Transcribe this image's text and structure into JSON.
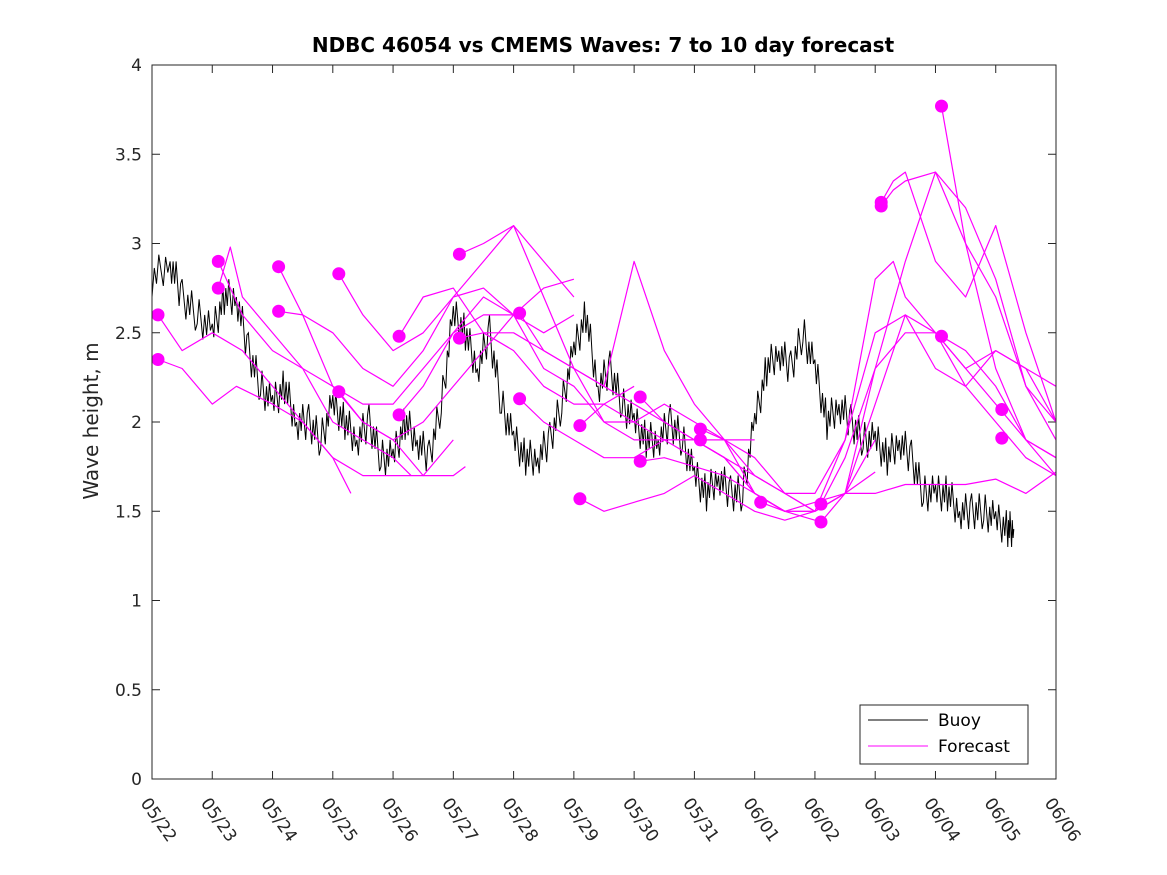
{
  "chart_data": {
    "type": "line",
    "title": "NDBC 46054 vs CMEMS Waves: 7 to 10 day forecast",
    "xlabel": "",
    "ylabel": "Wave height, m",
    "x_tick_labels": [
      "05/22",
      "05/23",
      "05/24",
      "05/25",
      "05/26",
      "05/27",
      "05/28",
      "05/29",
      "05/30",
      "05/31",
      "06/01",
      "06/02",
      "06/03",
      "06/04",
      "06/05",
      "06/06"
    ],
    "y_ticks": [
      0,
      0.5,
      1,
      1.5,
      2,
      2.5,
      3,
      3.5,
      4
    ],
    "xlim": [
      0,
      15
    ],
    "ylim": [
      0,
      4
    ],
    "x_unit": "days since 05/22",
    "grid": false,
    "legend_position": "bottom-right",
    "colors": {
      "buoy": "#000000",
      "forecast": "#ff00ff"
    },
    "legend": [
      {
        "key": "buoy",
        "label": "Buoy"
      },
      {
        "key": "forecast",
        "label": "Forecast"
      }
    ],
    "buoy": {
      "name": "Buoy",
      "x": [
        0,
        0.3,
        0.5,
        0.75,
        1,
        1.2,
        1.4,
        1.6,
        1.8,
        2,
        2.2,
        2.4,
        2.6,
        2.8,
        3,
        3.2,
        3.4,
        3.6,
        3.8,
        4,
        4.2,
        4.4,
        4.6,
        4.8,
        5,
        5.2,
        5.4,
        5.6,
        5.8,
        6,
        6.2,
        6.4,
        6.6,
        6.8,
        7,
        7.2,
        7.4,
        7.6,
        7.8,
        8,
        8.2,
        8.4,
        8.6,
        8.8,
        9,
        9.2,
        9.4,
        9.6,
        9.8,
        10,
        10.2,
        10.4,
        10.6,
        10.8,
        11,
        11.2,
        11.4,
        11.6,
        11.8,
        12,
        12.2,
        12.4,
        12.6,
        12.8,
        13,
        13.2,
        13.4,
        13.6,
        13.8,
        14,
        14.2,
        14.3
      ],
      "y": [
        2.8,
        2.9,
        2.7,
        2.6,
        2.5,
        2.7,
        2.7,
        2.4,
        2.2,
        2.1,
        2.2,
        2.0,
        2.0,
        1.9,
        2.1,
        2.0,
        1.9,
        2.0,
        1.8,
        1.8,
        2.0,
        1.9,
        1.8,
        2.1,
        2.6,
        2.5,
        2.3,
        2.5,
        2.1,
        1.9,
        1.8,
        1.8,
        1.9,
        2.1,
        2.4,
        2.6,
        2.2,
        2.3,
        2.1,
        2.0,
        1.9,
        1.9,
        2.0,
        1.9,
        1.7,
        1.6,
        1.7,
        1.6,
        1.6,
        2.0,
        2.3,
        2.4,
        2.3,
        2.5,
        2.3,
        2.0,
        2.1,
        2.0,
        1.9,
        1.9,
        1.8,
        1.9,
        1.8,
        1.6,
        1.6,
        1.6,
        1.5,
        1.5,
        1.5,
        1.45,
        1.4,
        1.4
      ]
    },
    "forecast_series": [
      {
        "x": [
          0.1,
          0.5,
          1,
          1.5,
          2,
          2.5,
          3,
          3.3
        ],
        "y": [
          2.6,
          2.4,
          2.5,
          2.4,
          2.2,
          2.0,
          1.8,
          1.6
        ]
      },
      {
        "x": [
          0.1,
          0.5,
          1,
          1.4,
          2,
          2.5,
          3,
          3.5,
          4,
          4.5,
          5,
          5.2
        ],
        "y": [
          2.35,
          2.3,
          2.1,
          2.2,
          2.1,
          2.0,
          1.8,
          1.7,
          1.7,
          1.7,
          1.7,
          1.75
        ]
      },
      {
        "x": [
          1.1,
          1.5,
          2,
          2.5,
          3,
          3.5,
          4,
          4.3
        ],
        "y": [
          2.9,
          2.6,
          2.4,
          2.3,
          2.0,
          1.9,
          1.8,
          1.7
        ]
      },
      {
        "x": [
          1.1,
          1.3,
          1.5,
          2,
          2.5,
          3,
          3.5,
          4,
          4.5,
          5
        ],
        "y": [
          2.75,
          2.98,
          2.7,
          2.5,
          2.3,
          2.2,
          2.0,
          1.9,
          1.7,
          1.9
        ]
      },
      {
        "x": [
          2.1,
          2.5,
          3,
          3.5,
          4,
          4.5,
          5,
          5.5,
          6
        ],
        "y": [
          2.87,
          2.6,
          2.2,
          2.1,
          2.1,
          2.3,
          2.5,
          2.7,
          2.6
        ]
      },
      {
        "x": [
          2.1,
          2.5,
          3,
          3.5,
          4,
          4.5,
          5,
          5.5,
          6,
          6.5,
          7
        ],
        "y": [
          2.62,
          2.6,
          2.5,
          2.3,
          2.2,
          2.4,
          2.7,
          2.75,
          2.6,
          2.75,
          2.8
        ]
      },
      {
        "x": [
          3.1,
          3.5,
          4,
          4.5,
          5,
          5.5,
          6,
          6.5,
          7
        ],
        "y": [
          2.83,
          2.6,
          2.4,
          2.5,
          2.7,
          2.9,
          3.1,
          2.9,
          2.7
        ]
      },
      {
        "x": [
          3.1,
          3.5,
          4,
          4.5,
          5,
          5.5,
          6,
          6.5,
          7
        ],
        "y": [
          2.17,
          2.0,
          1.9,
          2.0,
          2.2,
          2.4,
          2.6,
          2.5,
          2.6
        ]
      },
      {
        "x": [
          4.1,
          4.5,
          5,
          5.5,
          6,
          6.5,
          7,
          7.5,
          8
        ],
        "y": [
          2.48,
          2.7,
          2.75,
          2.5,
          2.4,
          2.2,
          2.1,
          2.1,
          2.2
        ]
      },
      {
        "x": [
          4.1,
          4.5,
          5,
          5.5,
          6,
          6.5,
          7,
          7.5,
          8,
          8.5,
          9
        ],
        "y": [
          2.04,
          2.2,
          2.5,
          2.6,
          2.6,
          2.3,
          2.2,
          2.0,
          1.9,
          1.9,
          1.8
        ]
      },
      {
        "x": [
          5.1,
          5.5,
          6,
          6.5,
          7,
          7.5,
          8,
          8.5,
          9,
          9.5,
          10
        ],
        "y": [
          2.94,
          3.0,
          3.1,
          2.7,
          2.3,
          2.0,
          2.0,
          2.1,
          2.0,
          1.9,
          1.9
        ]
      },
      {
        "x": [
          5.1,
          5.5,
          6,
          6.5,
          7,
          7.5,
          8,
          8.5,
          9
        ],
        "y": [
          2.47,
          2.5,
          2.5,
          2.4,
          2.3,
          2.2,
          2.1,
          2.0,
          1.9
        ]
      },
      {
        "x": [
          6.1,
          6.5,
          7,
          7.5,
          8,
          8.5,
          9,
          9.5,
          10,
          10.5
        ],
        "y": [
          2.61,
          2.4,
          2.3,
          2.2,
          2.9,
          2.4,
          2.1,
          1.9,
          1.6,
          1.5
        ]
      },
      {
        "x": [
          6.1,
          6.5,
          7,
          7.5,
          8,
          8.5,
          9,
          9.5,
          10,
          10.5,
          11
        ],
        "y": [
          2.13,
          2.0,
          1.9,
          1.8,
          1.8,
          1.9,
          1.9,
          1.8,
          1.7,
          1.6,
          1.5
        ]
      },
      {
        "x": [
          7.1,
          7.5,
          8,
          8.5,
          9,
          9.5,
          10,
          10.5,
          11
        ],
        "y": [
          1.98,
          2.1,
          2.0,
          1.9,
          1.9,
          1.8,
          1.6,
          1.5,
          1.45
        ]
      },
      {
        "x": [
          7.1,
          7.5,
          8,
          8.5,
          9,
          9.5,
          10,
          10.5,
          11,
          11.5,
          12
        ],
        "y": [
          1.57,
          1.5,
          1.55,
          1.6,
          1.7,
          1.6,
          1.5,
          1.45,
          1.5,
          1.6,
          1.72
        ]
      },
      {
        "x": [
          8.1,
          8.5,
          9,
          9.5,
          10,
          10.5,
          11,
          11.5,
          12
        ],
        "y": [
          2.14,
          2.0,
          1.9,
          1.8,
          1.6,
          1.5,
          1.5,
          1.6,
          1.9
        ]
      },
      {
        "x": [
          8.1,
          8.5,
          9,
          9.5,
          10,
          10.5,
          11,
          11.5,
          12,
          12.5,
          13,
          13.5,
          14,
          14.5,
          15
        ],
        "y": [
          1.78,
          1.8,
          1.75,
          1.7,
          1.6,
          1.5,
          1.55,
          1.6,
          1.6,
          1.65,
          1.65,
          1.65,
          1.68,
          1.6,
          1.72
        ]
      },
      {
        "x": [
          9.1,
          9.5,
          10,
          10.5,
          11,
          11.5,
          12,
          12.5,
          13,
          13.5,
          14,
          14.5,
          15
        ],
        "y": [
          1.96,
          1.9,
          1.7,
          1.6,
          1.6,
          1.9,
          2.5,
          2.6,
          2.3,
          2.2,
          2.4,
          2.3,
          2.2
        ]
      },
      {
        "x": [
          9.1,
          9.5,
          10,
          10.5,
          11,
          11.5,
          12,
          12.5,
          13,
          13.5,
          14,
          14.5,
          15
        ],
        "y": [
          1.9,
          1.9,
          1.8,
          1.6,
          1.5,
          1.6,
          2.3,
          2.5,
          2.5,
          2.3,
          2.4,
          2.3,
          2.0
        ]
      },
      {
        "x": [
          10.1,
          10.5,
          11,
          11.5,
          12,
          12.3,
          12.5,
          13,
          13.5,
          14,
          14.5,
          15
        ],
        "y": [
          1.55,
          1.5,
          1.5,
          1.9,
          2.8,
          2.9,
          2.7,
          2.5,
          2.2,
          2.0,
          1.8,
          1.7
        ]
      },
      {
        "x": [
          11.1,
          11.5,
          12,
          12.5,
          13,
          13.5,
          14,
          14.5,
          15
        ],
        "y": [
          1.44,
          1.6,
          2.1,
          2.6,
          2.5,
          2.3,
          2.1,
          1.9,
          1.8
        ]
      },
      {
        "x": [
          11.1,
          11.5,
          12,
          12.5,
          13,
          13.5,
          14,
          14.5,
          15
        ],
        "y": [
          1.54,
          1.8,
          2.3,
          2.9,
          3.4,
          3.2,
          2.8,
          2.2,
          1.9
        ]
      },
      {
        "x": [
          12.1,
          12.3,
          12.5,
          13,
          13.5,
          14,
          14.5,
          15
        ],
        "y": [
          3.23,
          3.35,
          3.4,
          2.9,
          2.7,
          3.1,
          2.5,
          2.0
        ]
      },
      {
        "x": [
          12.1,
          12.3,
          12.5,
          13,
          13.5,
          14,
          14.5,
          15
        ],
        "y": [
          3.21,
          3.3,
          3.35,
          3.4,
          3.0,
          2.7,
          2.2,
          2.0
        ]
      },
      {
        "x": [
          13.1,
          13.5,
          14,
          14.5,
          15
        ],
        "y": [
          3.77,
          3.0,
          2.3,
          1.9,
          1.8
        ]
      },
      {
        "x": [
          13.1,
          13.5,
          14,
          14.5,
          15
        ],
        "y": [
          2.48,
          2.4,
          2.2,
          1.9,
          1.7
        ]
      }
    ],
    "forecast_start_markers": [
      {
        "x": 0.1,
        "y": 2.6
      },
      {
        "x": 0.1,
        "y": 2.35
      },
      {
        "x": 1.1,
        "y": 2.9
      },
      {
        "x": 1.1,
        "y": 2.75
      },
      {
        "x": 2.1,
        "y": 2.87
      },
      {
        "x": 2.1,
        "y": 2.62
      },
      {
        "x": 3.1,
        "y": 2.83
      },
      {
        "x": 3.1,
        "y": 2.17
      },
      {
        "x": 4.1,
        "y": 2.48
      },
      {
        "x": 4.1,
        "y": 2.04
      },
      {
        "x": 5.1,
        "y": 2.94
      },
      {
        "x": 5.1,
        "y": 2.47
      },
      {
        "x": 6.1,
        "y": 2.61
      },
      {
        "x": 6.1,
        "y": 2.13
      },
      {
        "x": 7.1,
        "y": 1.98
      },
      {
        "x": 7.1,
        "y": 1.57
      },
      {
        "x": 8.1,
        "y": 2.14
      },
      {
        "x": 8.1,
        "y": 1.78
      },
      {
        "x": 9.1,
        "y": 1.96
      },
      {
        "x": 9.1,
        "y": 1.9
      },
      {
        "x": 10.1,
        "y": 1.55
      },
      {
        "x": 11.1,
        "y": 1.54
      },
      {
        "x": 11.1,
        "y": 1.44
      },
      {
        "x": 12.1,
        "y": 3.23
      },
      {
        "x": 12.1,
        "y": 3.21
      },
      {
        "x": 13.1,
        "y": 3.77
      },
      {
        "x": 13.1,
        "y": 2.48
      },
      {
        "x": 14.1,
        "y": 2.07
      },
      {
        "x": 14.1,
        "y": 1.91
      }
    ]
  }
}
